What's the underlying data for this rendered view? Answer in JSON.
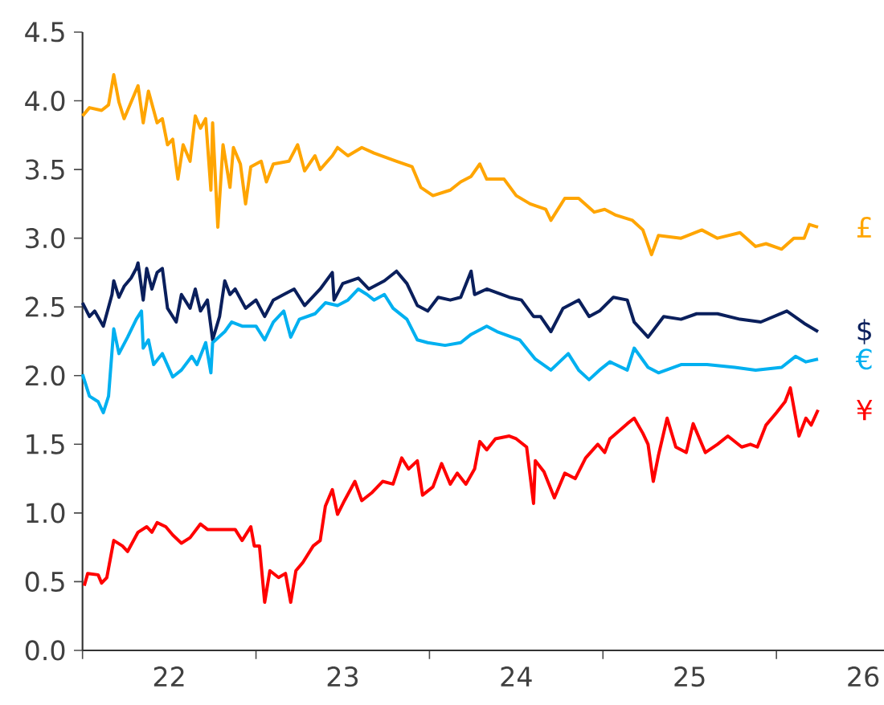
{
  "chart_data": {
    "type": "line",
    "xlim": [
      21.5,
      26.12
    ],
    "ylim": [
      0,
      4.5
    ],
    "xticks": [
      {
        "value": 21.5,
        "label": null
      },
      {
        "value": 22.5,
        "label": null
      },
      {
        "value": 23.5,
        "label": null
      },
      {
        "value": 24.5,
        "label": null
      },
      {
        "value": 25.5,
        "label": null
      },
      22,
      23,
      24,
      25,
      26
    ],
    "yticks": [
      {
        "value": 0,
        "label": "0.0"
      },
      {
        "value": 0.5,
        "label": "0.5"
      },
      {
        "value": 1,
        "label": "1.0"
      },
      {
        "value": 1.5,
        "label": "1.5"
      },
      {
        "value": 2,
        "label": "2.0"
      },
      {
        "value": 2.5,
        "label": "2.5"
      },
      {
        "value": 3,
        "label": "3.0"
      },
      {
        "value": 3.5,
        "label": "3.5"
      },
      {
        "value": 4,
        "label": "4.0"
      },
      {
        "value": 4.5,
        "label": "4.5"
      }
    ],
    "series": [
      {
        "name": "£",
        "color": "#ffa500",
        "x": [
          21.5,
          21.54,
          21.61,
          21.65,
          21.68,
          21.71,
          21.74,
          21.78,
          21.82,
          21.85,
          21.88,
          21.93,
          21.96,
          21.99,
          22.02,
          22.05,
          22.08,
          22.12,
          22.15,
          22.18,
          22.21,
          22.24,
          22.25,
          22.28,
          22.31,
          22.35,
          22.37,
          22.41,
          22.44,
          22.47,
          22.53,
          22.56,
          22.6,
          22.69,
          22.74,
          22.78,
          22.84,
          22.87,
          22.94,
          22.97,
          23.03,
          23.11,
          23.18,
          23.31,
          23.4,
          23.45,
          23.52,
          23.62,
          23.68,
          23.74,
          23.79,
          23.83,
          23.93,
          24.0,
          24.08,
          24.17,
          24.2,
          24.28,
          24.36,
          24.45,
          24.51,
          24.57,
          24.67,
          24.73,
          24.78,
          24.82,
          24.95,
          25.07,
          25.16,
          25.29,
          25.38,
          25.44,
          25.53,
          25.6,
          25.66,
          25.69,
          25.74
        ],
        "values": [
          3.89,
          3.95,
          3.93,
          3.97,
          4.19,
          3.99,
          3.87,
          3.99,
          4.11,
          3.84,
          4.07,
          3.84,
          3.87,
          3.68,
          3.72,
          3.43,
          3.68,
          3.56,
          3.89,
          3.8,
          3.87,
          3.35,
          3.84,
          3.08,
          3.68,
          3.37,
          3.66,
          3.54,
          3.25,
          3.52,
          3.56,
          3.41,
          3.54,
          3.56,
          3.68,
          3.49,
          3.6,
          3.5,
          3.6,
          3.66,
          3.6,
          3.66,
          3.62,
          3.56,
          3.52,
          3.37,
          3.31,
          3.35,
          3.41,
          3.45,
          3.54,
          3.43,
          3.43,
          3.31,
          3.25,
          3.21,
          3.13,
          3.29,
          3.29,
          3.19,
          3.21,
          3.17,
          3.13,
          3.06,
          2.88,
          3.02,
          3.0,
          3.06,
          3.0,
          3.04,
          2.94,
          2.96,
          2.92,
          3.0,
          3.0,
          3.1,
          3.08
        ]
      },
      {
        "name": "$",
        "color": "#0a1f5c",
        "x": [
          21.5,
          21.54,
          21.57,
          21.62,
          21.67,
          21.68,
          21.71,
          21.74,
          21.78,
          21.81,
          21.82,
          21.85,
          21.87,
          21.9,
          21.93,
          21.96,
          21.99,
          22.04,
          22.07,
          22.12,
          22.15,
          22.18,
          22.22,
          22.25,
          22.29,
          22.32,
          22.35,
          22.38,
          22.44,
          22.5,
          22.55,
          22.6,
          22.66,
          22.72,
          22.78,
          22.87,
          22.94,
          22.95,
          23.0,
          23.09,
          23.15,
          23.24,
          23.31,
          23.37,
          23.43,
          23.49,
          23.55,
          23.62,
          23.68,
          23.74,
          23.76,
          23.83,
          23.96,
          24.03,
          24.1,
          24.14,
          24.2,
          24.27,
          24.36,
          24.42,
          24.48,
          24.56,
          24.64,
          24.68,
          24.76,
          24.85,
          24.95,
          25.04,
          25.16,
          25.29,
          25.41,
          25.56,
          25.66,
          25.74
        ],
        "values": [
          2.53,
          2.43,
          2.47,
          2.36,
          2.59,
          2.69,
          2.57,
          2.65,
          2.71,
          2.78,
          2.82,
          2.55,
          2.78,
          2.63,
          2.75,
          2.78,
          2.49,
          2.39,
          2.59,
          2.49,
          2.63,
          2.47,
          2.55,
          2.26,
          2.43,
          2.69,
          2.59,
          2.63,
          2.49,
          2.55,
          2.43,
          2.55,
          2.59,
          2.63,
          2.51,
          2.63,
          2.75,
          2.55,
          2.67,
          2.71,
          2.63,
          2.69,
          2.76,
          2.67,
          2.51,
          2.47,
          2.57,
          2.55,
          2.57,
          2.76,
          2.59,
          2.63,
          2.57,
          2.55,
          2.43,
          2.43,
          2.32,
          2.49,
          2.55,
          2.43,
          2.47,
          2.57,
          2.55,
          2.39,
          2.28,
          2.43,
          2.41,
          2.45,
          2.45,
          2.41,
          2.39,
          2.47,
          2.38,
          2.32
        ]
      },
      {
        "name": "€",
        "color": "#00b0f0",
        "x": [
          21.5,
          21.54,
          21.59,
          21.62,
          21.65,
          21.68,
          21.71,
          21.76,
          21.81,
          21.84,
          21.85,
          21.88,
          21.91,
          21.96,
          22.02,
          22.07,
          22.13,
          22.16,
          22.21,
          22.24,
          22.25,
          22.32,
          22.36,
          22.42,
          22.5,
          22.55,
          22.6,
          22.66,
          22.7,
          22.75,
          22.84,
          22.9,
          22.97,
          23.03,
          23.09,
          23.14,
          23.18,
          23.24,
          23.29,
          23.37,
          23.43,
          23.49,
          23.59,
          23.68,
          23.74,
          23.83,
          23.89,
          24.02,
          24.11,
          24.2,
          24.3,
          24.36,
          24.42,
          24.48,
          24.54,
          24.64,
          24.68,
          24.76,
          24.82,
          24.95,
          25.1,
          25.26,
          25.38,
          25.53,
          25.61,
          25.67,
          25.74
        ],
        "values": [
          2.01,
          1.85,
          1.81,
          1.73,
          1.85,
          2.34,
          2.16,
          2.28,
          2.41,
          2.47,
          2.2,
          2.26,
          2.08,
          2.16,
          1.99,
          2.04,
          2.14,
          2.08,
          2.24,
          2.02,
          2.24,
          2.32,
          2.39,
          2.36,
          2.36,
          2.26,
          2.39,
          2.47,
          2.28,
          2.41,
          2.45,
          2.53,
          2.51,
          2.55,
          2.63,
          2.59,
          2.55,
          2.59,
          2.49,
          2.41,
          2.26,
          2.24,
          2.22,
          2.24,
          2.3,
          2.36,
          2.32,
          2.26,
          2.12,
          2.04,
          2.16,
          2.04,
          1.97,
          2.04,
          2.1,
          2.04,
          2.2,
          2.06,
          2.02,
          2.08,
          2.08,
          2.06,
          2.04,
          2.06,
          2.14,
          2.1,
          2.12
        ]
      },
      {
        "name": "¥",
        "color": "#ff0000",
        "x": [
          21.51,
          21.53,
          21.59,
          21.61,
          21.64,
          21.68,
          21.73,
          21.76,
          21.82,
          21.87,
          21.9,
          21.93,
          21.98,
          22.02,
          22.07,
          22.12,
          22.18,
          22.22,
          22.32,
          22.38,
          22.42,
          22.47,
          22.49,
          22.52,
          22.55,
          22.58,
          22.63,
          22.67,
          22.7,
          22.73,
          22.77,
          22.83,
          22.87,
          22.9,
          22.94,
          22.97,
          23.01,
          23.07,
          23.11,
          23.17,
          23.23,
          23.29,
          23.34,
          23.38,
          23.43,
          23.46,
          23.52,
          23.57,
          23.62,
          23.66,
          23.71,
          23.76,
          23.79,
          23.83,
          23.88,
          23.96,
          24.0,
          24.06,
          24.1,
          24.11,
          24.16,
          24.22,
          24.28,
          24.34,
          24.4,
          24.47,
          24.51,
          24.54,
          24.64,
          24.68,
          24.73,
          24.76,
          24.79,
          24.82,
          24.87,
          24.92,
          24.98,
          25.02,
          25.09,
          25.16,
          25.22,
          25.3,
          25.35,
          25.39,
          25.44,
          25.5,
          25.55,
          25.58,
          25.63,
          25.67,
          25.7,
          25.74
        ],
        "values": [
          0.47,
          0.56,
          0.55,
          0.49,
          0.53,
          0.8,
          0.76,
          0.72,
          0.86,
          0.9,
          0.86,
          0.93,
          0.9,
          0.84,
          0.78,
          0.82,
          0.92,
          0.88,
          0.88,
          0.88,
          0.8,
          0.9,
          0.76,
          0.76,
          0.35,
          0.58,
          0.53,
          0.56,
          0.35,
          0.58,
          0.64,
          0.76,
          0.8,
          1.05,
          1.17,
          0.99,
          1.09,
          1.23,
          1.09,
          1.15,
          1.23,
          1.21,
          1.4,
          1.32,
          1.38,
          1.13,
          1.19,
          1.36,
          1.21,
          1.29,
          1.21,
          1.32,
          1.52,
          1.46,
          1.54,
          1.56,
          1.54,
          1.48,
          1.07,
          1.38,
          1.3,
          1.11,
          1.29,
          1.25,
          1.4,
          1.5,
          1.44,
          1.54,
          1.65,
          1.69,
          1.58,
          1.5,
          1.23,
          1.42,
          1.69,
          1.48,
          1.44,
          1.65,
          1.44,
          1.5,
          1.56,
          1.48,
          1.5,
          1.48,
          1.64,
          1.73,
          1.81,
          1.91,
          1.56,
          1.69,
          1.64,
          1.75
        ]
      }
    ]
  }
}
